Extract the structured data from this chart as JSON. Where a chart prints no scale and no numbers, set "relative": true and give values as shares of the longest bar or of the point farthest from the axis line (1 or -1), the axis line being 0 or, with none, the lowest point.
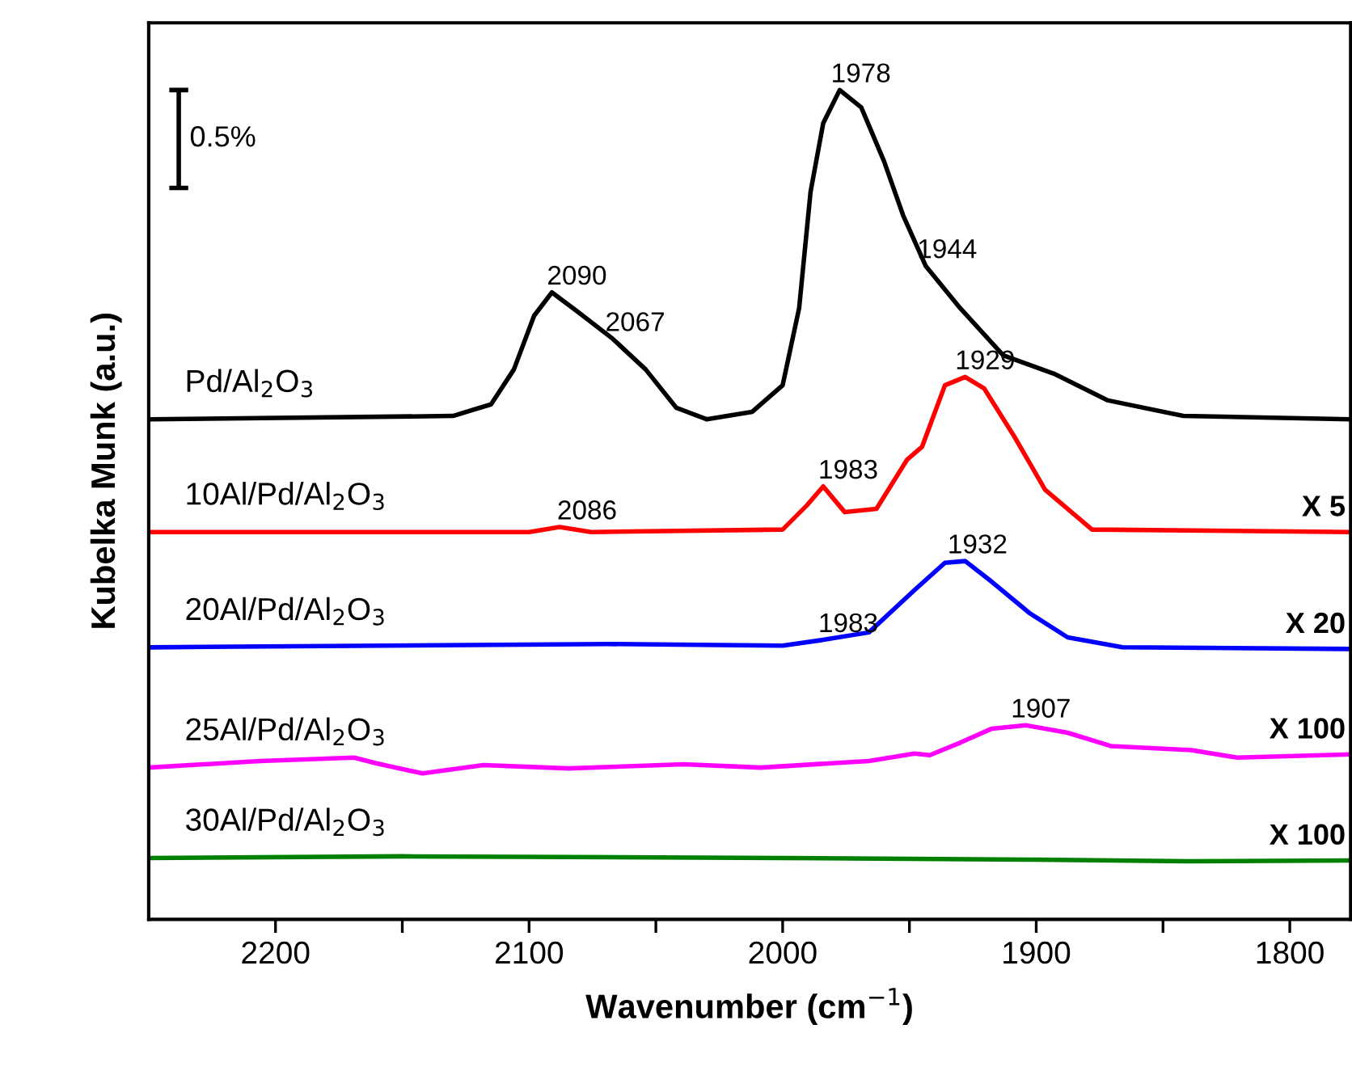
{
  "chart_data": {
    "type": "line",
    "relative": true,
    "xlabel": "Wavenumber (cm$^{−1}$)",
    "ylabel": "Kubelka Munk (a.u.)",
    "xlim": [
      2250,
      1776
    ],
    "xticks": [
      {
        "value": 2150,
        "label": null
      },
      2200,
      2100,
      {
        "value": 2050,
        "label": null
      },
      2000,
      {
        "value": 1950,
        "label": null
      },
      1900,
      {
        "value": 1850,
        "label": null
      },
      1800
    ],
    "tick_labels": "x",
    "grid": false,
    "legend": false,
    "marker": "none",
    "line_style": "solid",
    "series": [
      {
        "name": "Pd/Al$_{2}$O$_{3}$",
        "color": "#000000",
        "x": [
          2250,
          2130,
          2115,
          2106,
          2098,
          2091,
          2081,
          2067,
          2054,
          2042,
          2030,
          2012,
          2000,
          1993.5,
          1989,
          1984,
          1977.5,
          1969,
          1960,
          1952.5,
          1943.6,
          1930,
          1913,
          1893,
          1872,
          1842,
          1776
        ],
        "values": [
          0.603,
          0.607,
          0.621,
          0.663,
          0.728,
          0.756,
          0.733,
          0.7,
          0.663,
          0.617,
          0.603,
          0.612,
          0.644,
          0.737,
          0.877,
          0.96,
          1.0,
          0.979,
          0.914,
          0.849,
          0.788,
          0.737,
          0.68,
          0.658,
          0.626,
          0.607,
          0.603
        ]
      },
      {
        "name": "10Al/Pd/Al$_{2}$O$_{3}$",
        "color": "#ff0000",
        "x": [
          2250,
          2100,
          2088,
          2075.5,
          2000,
          1990.5,
          1984,
          1975.5,
          1963,
          1951,
          1945,
          1936,
          1928,
          1920.5,
          1908.6,
          1896.5,
          1878,
          1776
        ],
        "values": [
          0.467,
          0.467,
          0.473,
          0.467,
          0.47,
          0.499,
          0.522,
          0.491,
          0.495,
          0.554,
          0.57,
          0.644,
          0.654,
          0.64,
          0.582,
          0.518,
          0.47,
          0.467
        ]
      },
      {
        "name": "20Al/Pd/Al$_{2}$O$_{3}$",
        "color": "#0000ff",
        "x": [
          2250,
          2069,
          2000,
          1984,
          1966,
          1948,
          1936,
          1928,
          1917.5,
          1902.5,
          1887.6,
          1866,
          1776
        ],
        "values": [
          0.328,
          0.332,
          0.33,
          0.337,
          0.346,
          0.397,
          0.43,
          0.432,
          0.407,
          0.369,
          0.34,
          0.328,
          0.326
        ]
      },
      {
        "name": "25Al/Pd/Al$_{2}$O$_{3}$",
        "color": "#ff00ff",
        "x": [
          2250,
          2206,
          2169,
          2160,
          2142,
          2118,
          2084.5,
          2039,
          2008.6,
          1966,
          1948,
          1942,
          1930,
          1917.5,
          1904,
          1887.6,
          1870.6,
          1838.8,
          1820.7,
          1776
        ],
        "values": [
          0.183,
          0.191,
          0.195,
          0.188,
          0.176,
          0.186,
          0.182,
          0.187,
          0.183,
          0.191,
          0.2,
          0.198,
          0.213,
          0.23,
          0.234,
          0.225,
          0.209,
          0.204,
          0.195,
          0.199
        ]
      },
      {
        "name": "30Al/Pd/Al$_{2}$O$_{3}$",
        "color": "#008000",
        "x": [
          2250,
          2150,
          2000,
          1900,
          1840,
          1776
        ],
        "values": [
          0.074,
          0.076,
          0.074,
          0.072,
          0.07,
          0.071
        ]
      }
    ],
    "annotations": [
      "0.5%",
      {
        "text": "2090",
        "x": 2090,
        "y": 0.756
      },
      {
        "text": "2067",
        "x": 2067,
        "y": 0.7
      },
      {
        "text": "1978",
        "x": 1978,
        "y": 1.0
      },
      {
        "text": "1944",
        "x": 1944,
        "y": 0.788
      },
      {
        "text": "2086",
        "x": 2086,
        "y": 0.473
      },
      {
        "text": "1983",
        "x": 1983,
        "y": 0.522
      },
      {
        "text": "1929",
        "x": 1929,
        "y": 0.654
      },
      {
        "text": "1983",
        "x": 1983,
        "y": 0.337
      },
      {
        "text": "1932",
        "x": 1932,
        "y": 0.432
      },
      {
        "text": "1907",
        "x": 1907,
        "y": 0.234
      },
      {
        "text": "X 5",
        "x": 1778,
        "y": 0.467
      },
      {
        "text": "X 20",
        "x": 1778,
        "y": 0.326
      },
      {
        "text": "X 100",
        "x": 1778,
        "y": 0.199
      },
      {
        "text": "X 100",
        "x": 1778,
        "y": 0.071
      }
    ]
  }
}
